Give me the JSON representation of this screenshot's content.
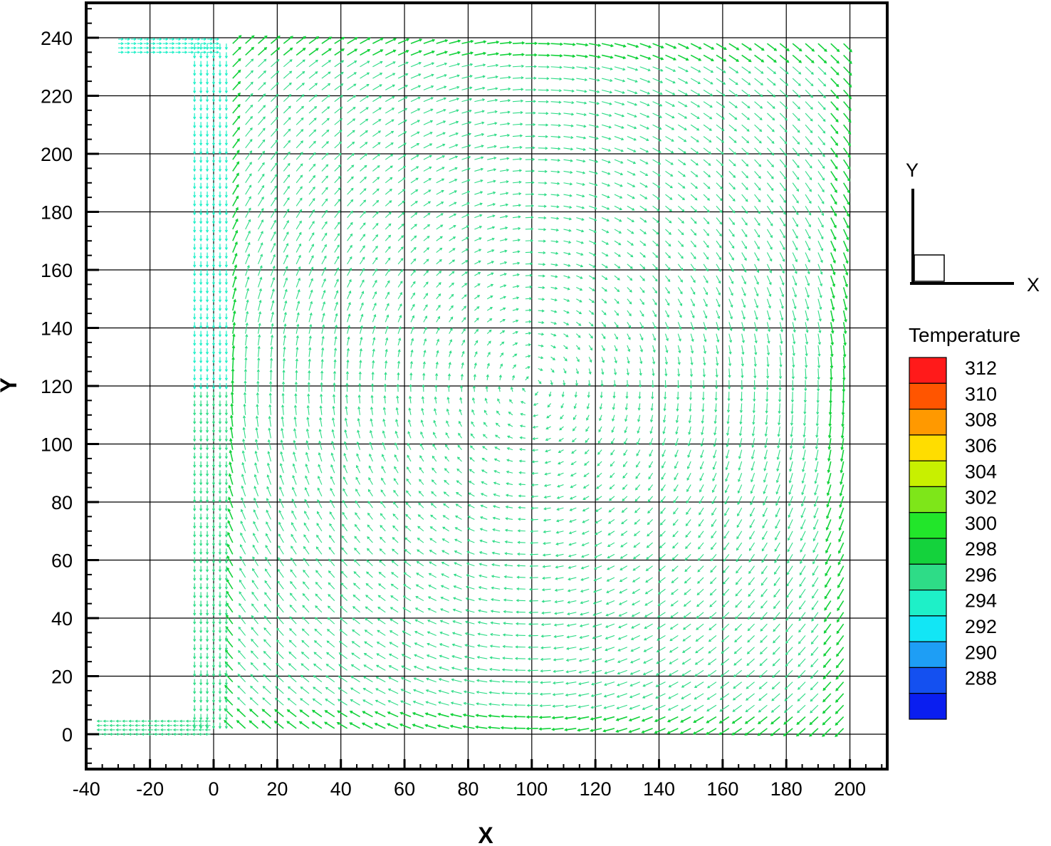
{
  "chart_data": {
    "type": "vector_field",
    "title": "",
    "xlabel": "X",
    "ylabel": "Y",
    "xlim": [
      -40,
      210
    ],
    "ylim": [
      -10,
      252
    ],
    "x_ticks": [
      -40,
      -20,
      0,
      20,
      40,
      60,
      80,
      100,
      120,
      140,
      160,
      180,
      200
    ],
    "y_ticks": [
      0,
      20,
      40,
      60,
      80,
      100,
      120,
      140,
      160,
      180,
      200,
      220,
      240
    ],
    "grid": true,
    "field": {
      "description_color_variable": "Temperature",
      "domain_main": {
        "x": [
          0,
          200
        ],
        "y": [
          0,
          240
        ]
      },
      "inlet_channel": {
        "x": [
          -30,
          0
        ],
        "y": [
          235,
          240
        ],
        "temperature": 294
      },
      "outlet_channel": {
        "x": [
          -35,
          0
        ],
        "y": [
          0,
          5
        ],
        "temperature": 297
      },
      "left_wall_jet": {
        "x": [
          -6,
          4
        ],
        "y": [
          0,
          240
        ],
        "temperature_top": 294,
        "temperature_bottom": 296
      },
      "interior_temperature": 296,
      "boundary_temperature": 299,
      "circulation": "clockwise"
    },
    "legend": {
      "title": "Temperature",
      "placement": "right",
      "levels": [
        312,
        310,
        308,
        306,
        304,
        302,
        300,
        298,
        296,
        294,
        292,
        290,
        288
      ],
      "colors": [
        "#ff1a1a",
        "#ff5500",
        "#ff9900",
        "#ffdd00",
        "#c8f000",
        "#7ee619",
        "#22e62a",
        "#14d23c",
        "#2edc87",
        "#1ef0c8",
        "#12e6f5",
        "#1e9ef5",
        "#1450f0",
        "#0a1ef0"
      ]
    },
    "triad": {
      "x_label": "X",
      "y_label": "Y"
    }
  }
}
